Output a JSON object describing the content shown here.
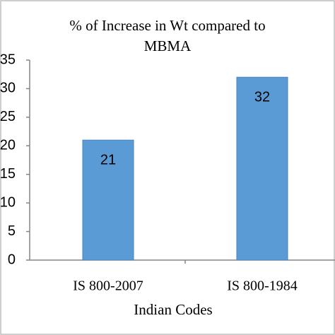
{
  "chart_data": {
    "type": "bar",
    "title": "% of Increase in Wt compared to MBMA",
    "x_label": "Indian Codes",
    "categories": [
      "IS 800-2007",
      "IS 800-1984"
    ],
    "values": [
      21,
      32
    ],
    "color": "#5b9bd5",
    "ylim": [
      0,
      35
    ],
    "yticks": [
      0,
      5,
      10,
      15,
      20,
      25,
      30,
      35
    ],
    "grid": false
  }
}
